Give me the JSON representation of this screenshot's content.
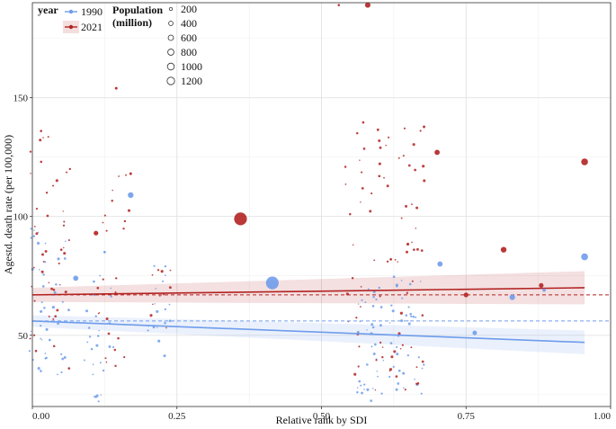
{
  "chart_data": {
    "type": "scatter",
    "xlabel": "Relative rank by SDI",
    "ylabel": "Agestd. death rate (per 100,000)",
    "xlim": [
      0,
      1
    ],
    "ylim": [
      20,
      190
    ],
    "x_ticks": [
      0.0,
      0.25,
      0.5,
      0.75,
      1.0
    ],
    "x_tick_labels": [
      "0.00",
      "0.25",
      "0.50",
      "0.75",
      "1.00"
    ],
    "y_ticks": [
      50,
      100,
      150
    ],
    "y_tick_labels": [
      "50",
      "100",
      "150"
    ],
    "grid": true,
    "legend_year": {
      "title": "year",
      "entries": [
        {
          "label": "1990",
          "color": "#6f9ceb"
        },
        {
          "label": "2021",
          "color": "#b22222"
        }
      ]
    },
    "legend_size": {
      "title": "Population\n(million)",
      "title_lines": [
        "Population",
        "(million)"
      ],
      "entries": [
        "200",
        "400",
        "600",
        "800",
        "1000",
        "1200"
      ],
      "values": [
        200,
        400,
        600,
        800,
        1000,
        1200
      ]
    },
    "series": [
      {
        "name": "1990",
        "color": "#6f9ceb",
        "fit_line": {
          "x": [
            0.0,
            0.955
          ],
          "y": [
            56.0,
            47.0
          ]
        },
        "ci_upper": [
          58.5,
          52.0
        ],
        "ci_lower": [
          53.5,
          42.0
        ],
        "hline": 56.0,
        "points": [
          {
            "x": 0.075,
            "y": 74.0,
            "pop": 150
          },
          {
            "x": 0.17,
            "y": 109.0,
            "pop": 180
          },
          {
            "x": 0.415,
            "y": 72.0,
            "pop": 900
          },
          {
            "x": 0.705,
            "y": 80.0,
            "pop": 150
          },
          {
            "x": 0.765,
            "y": 51.0,
            "pop": 110
          },
          {
            "x": 0.83,
            "y": 66.0,
            "pop": 170
          },
          {
            "x": 0.955,
            "y": 83.0,
            "pop": 260
          },
          {
            "x": 0.885,
            "y": 69.0,
            "pop": 60
          },
          {
            "x": 0.015,
            "y": 60.0,
            "pop": 40
          },
          {
            "x": 0.03,
            "y": 48.0,
            "pop": 30
          },
          {
            "x": 0.05,
            "y": 42.0,
            "pop": 20
          },
          {
            "x": 0.11,
            "y": 58.0,
            "pop": 25
          },
          {
            "x": 0.125,
            "y": 85.0,
            "pop": 35
          },
          {
            "x": 0.14,
            "y": 45.0,
            "pop": 20
          },
          {
            "x": 0.2,
            "y": 52.0,
            "pop": 20
          },
          {
            "x": 0.23,
            "y": 79.0,
            "pop": 25
          },
          {
            "x": 0.6,
            "y": 70.0,
            "pop": 25
          },
          {
            "x": 0.63,
            "y": 45.0,
            "pop": 20
          },
          {
            "x": 0.655,
            "y": 58.0,
            "pop": 20
          }
        ]
      },
      {
        "name": "2021",
        "color": "#b22222",
        "fit_line": {
          "x": [
            0.0,
            0.955
          ],
          "y": [
            67.0,
            70.0
          ]
        },
        "ci_upper": [
          70.0,
          77.0
        ],
        "ci_lower": [
          64.0,
          63.0
        ],
        "hline": 67.0,
        "points": [
          {
            "x": 0.36,
            "y": 99.0,
            "pop": 900
          },
          {
            "x": 0.58,
            "y": 189.0,
            "pop": 160
          },
          {
            "x": 0.7,
            "y": 127.0,
            "pop": 150
          },
          {
            "x": 0.955,
            "y": 123.0,
            "pop": 250
          },
          {
            "x": 0.815,
            "y": 86.0,
            "pop": 180
          },
          {
            "x": 0.75,
            "y": 67.0,
            "pop": 120
          },
          {
            "x": 0.88,
            "y": 71.0,
            "pop": 120
          },
          {
            "x": 0.11,
            "y": 93.0,
            "pop": 120
          },
          {
            "x": 0.145,
            "y": 154.0,
            "pop": 40
          },
          {
            "x": 0.17,
            "y": 118.0,
            "pop": 40
          },
          {
            "x": 0.53,
            "y": 189.0,
            "pop": 30
          },
          {
            "x": 0.015,
            "y": 136.0,
            "pop": 30
          },
          {
            "x": 0.025,
            "y": 110.0,
            "pop": 25
          },
          {
            "x": 0.065,
            "y": 120.0,
            "pop": 25
          },
          {
            "x": 0.16,
            "y": 98.0,
            "pop": 25
          },
          {
            "x": 0.6,
            "y": 117.0,
            "pop": 30
          },
          {
            "x": 0.62,
            "y": 82.0,
            "pop": 30
          },
          {
            "x": 0.05,
            "y": 86.0,
            "pop": 30
          },
          {
            "x": 0.145,
            "y": 74.0,
            "pop": 25
          },
          {
            "x": 0.04,
            "y": 58.0,
            "pop": 30
          },
          {
            "x": 0.66,
            "y": 86.0,
            "pop": 30
          }
        ]
      }
    ],
    "small_point_clusters": [
      {
        "series": "1990",
        "x_center": 0.03,
        "x_spread": 0.035,
        "y_min": 28,
        "y_max": 95,
        "count": 40
      },
      {
        "series": "2021",
        "x_center": 0.03,
        "x_spread": 0.035,
        "y_min": 35,
        "y_max": 135,
        "count": 40
      },
      {
        "series": "1990",
        "x_center": 0.115,
        "x_spread": 0.025,
        "y_min": 22,
        "y_max": 80,
        "count": 25
      },
      {
        "series": "2021",
        "x_center": 0.14,
        "x_spread": 0.03,
        "y_min": 36,
        "y_max": 120,
        "count": 22
      },
      {
        "series": "1990",
        "x_center": 0.22,
        "x_spread": 0.02,
        "y_min": 40,
        "y_max": 80,
        "count": 15
      },
      {
        "series": "2021",
        "x_center": 0.22,
        "x_spread": 0.02,
        "y_min": 52,
        "y_max": 78,
        "count": 10
      },
      {
        "series": "1990",
        "x_center": 0.62,
        "x_spread": 0.06,
        "y_min": 22,
        "y_max": 75,
        "count": 70
      },
      {
        "series": "2021",
        "x_center": 0.61,
        "x_spread": 0.07,
        "y_min": 25,
        "y_max": 140,
        "count": 80
      }
    ]
  }
}
